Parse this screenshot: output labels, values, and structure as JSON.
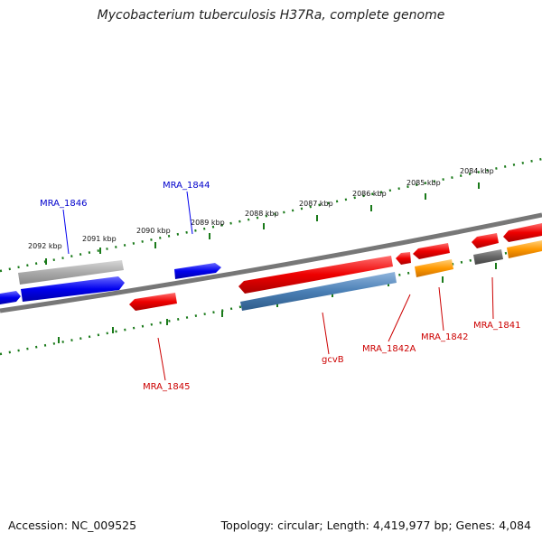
{
  "title": "Mycobacterium tuberculosis H37Ra, complete genome",
  "footer": {
    "accession": "Accession: NC_009525",
    "topology": "Topology: circular; Length: 4,419,977 bp; Genes: 4,084"
  },
  "ticks": [
    "2092 kbp",
    "2091 kbp",
    "2090 kbp",
    "2089 kbp",
    "2088 kbp",
    "2087 kbp",
    "2086 kbp",
    "2085 kbp",
    "2084 kbp"
  ],
  "gene_labels": {
    "mra_1846": "MRA_1846",
    "mra_1844": "MRA_1844",
    "mra_1845": "MRA_1845",
    "gcvb": "gcvB",
    "mra_1842a": "MRA_1842A",
    "mra_1842": "MRA_1842",
    "mra_1841": "MRA_1841"
  },
  "colors": {
    "forward_gene": "#0000ee",
    "reverse_gene": "#ee0000",
    "backbone": "#777777",
    "tick": "#1a7a1a",
    "pseudo_gene": "#a0a0a0",
    "rna_gene": "#4a7fb5",
    "orange_gene": "#ff9900"
  }
}
